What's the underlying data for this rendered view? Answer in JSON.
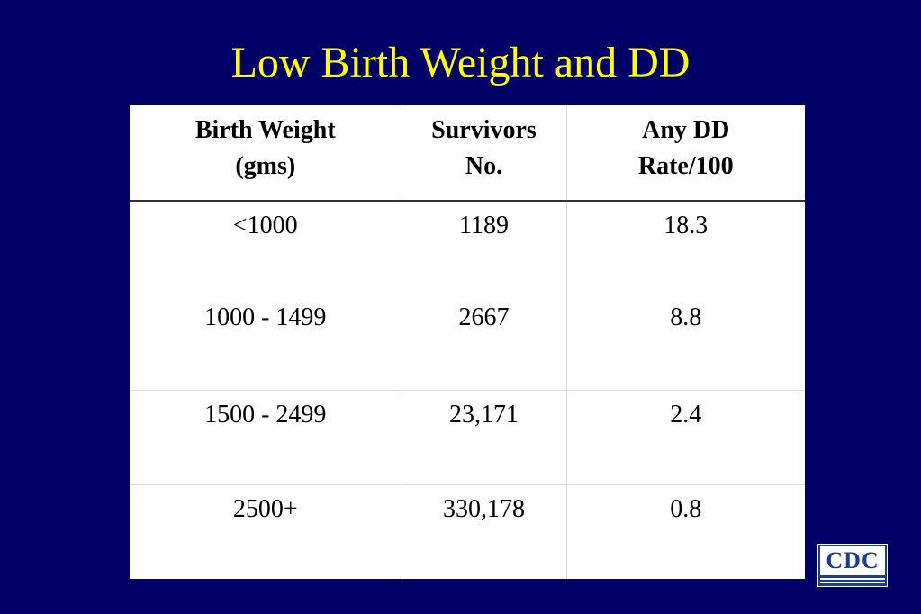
{
  "slide": {
    "title": "Low Birth Weight and DD"
  },
  "table": {
    "headers": [
      {
        "line1": "Birth Weight",
        "line2": "(gms)"
      },
      {
        "line1": "Survivors",
        "line2": "No."
      },
      {
        "line1": "Any DD",
        "line2": "Rate/100"
      }
    ],
    "rows": [
      {
        "weight": "<1000",
        "survivors": "1189",
        "rate": "18.3"
      },
      {
        "weight": "1000 - 1499",
        "survivors": "2667",
        "rate": "8.8"
      },
      {
        "weight": "1500 - 2499",
        "survivors": "23,171",
        "rate": "2.4"
      },
      {
        "weight": "2500+",
        "survivors": "330,178",
        "rate": "0.8"
      }
    ]
  },
  "logo": {
    "text": "CDC",
    "icon": "cdc-logo-icon"
  }
}
